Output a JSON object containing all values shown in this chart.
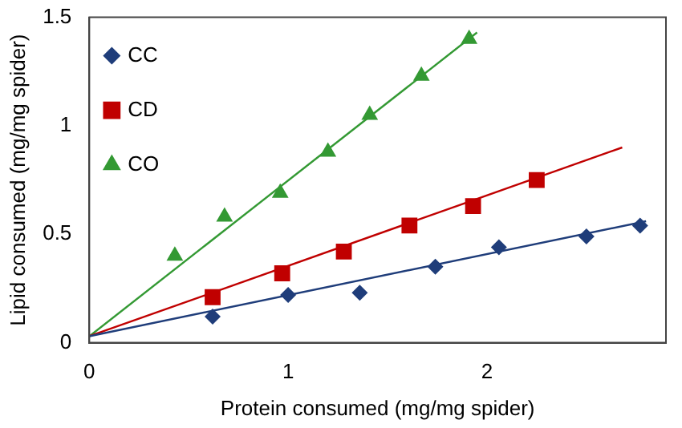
{
  "chart_data": {
    "type": "scatter",
    "xlabel": "Protein consumed (mg/mg spider)",
    "ylabel": "Lipid consumed (mg/mg spider)",
    "xlim": [
      0,
      2.9
    ],
    "xticks": [
      0,
      1,
      2
    ],
    "ylim": [
      0,
      1.5
    ],
    "yticks": [
      0,
      0.5,
      1,
      1.5
    ],
    "grid": false,
    "legend": "top left",
    "series": [
      {
        "name": "CC",
        "color": "#1f3d7a",
        "marker": "diamond",
        "x": [
          0.62,
          1.0,
          1.36,
          1.74,
          2.06,
          2.5,
          2.77
        ],
        "values": [
          0.12,
          0.22,
          0.23,
          0.35,
          0.44,
          0.49,
          0.54
        ]
      },
      {
        "name": "CD",
        "color": "#c00000",
        "marker": "square",
        "x": [
          0.62,
          0.97,
          1.28,
          1.61,
          1.93,
          2.25
        ],
        "values": [
          0.21,
          0.32,
          0.42,
          0.54,
          0.63,
          0.75
        ]
      },
      {
        "name": "CO",
        "color": "#339933",
        "marker": "triangle",
        "x": [
          0.43,
          0.68,
          0.96,
          1.2,
          1.41,
          1.67,
          1.91
        ],
        "values": [
          0.4,
          0.58,
          0.69,
          0.88,
          1.05,
          1.23,
          1.4
        ]
      },
      {
        "type": "line",
        "color": "#1f3d7a",
        "marker": "none",
        "x": [
          0,
          2.8
        ],
        "values": [
          0.03,
          0.56
        ]
      },
      {
        "type": "line",
        "color": "#c00000",
        "marker": "none",
        "x": [
          0,
          2.68
        ],
        "values": [
          0.03,
          0.9
        ]
      },
      {
        "type": "line",
        "color": "#339933",
        "marker": "none",
        "x": [
          0,
          1.95
        ],
        "values": [
          0.03,
          1.43
        ]
      }
    ]
  }
}
